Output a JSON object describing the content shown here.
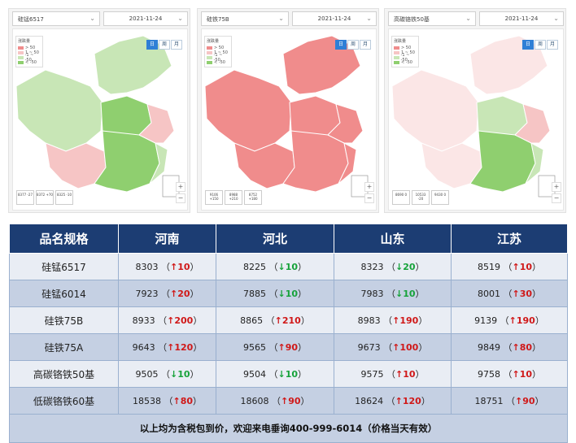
{
  "panels": [
    {
      "name": "硅锰6517",
      "date": "2021-11-24",
      "legend_title": "涨跌量",
      "legend": [
        "> 50",
        "1 ~ 50",
        "-1 ~ -50",
        "< -50"
      ],
      "summary": [
        "8377 -27",
        "8372 +70",
        "8325 -10"
      ]
    },
    {
      "name": "硅铁75B",
      "date": "2021-11-24",
      "legend_title": "涨跌量",
      "legend": [
        "> 50",
        "1 ~ 50",
        "-1 ~ -50",
        "< -50"
      ],
      "summary": [
        "9106 +150",
        "8988 +210",
        "8752 +180"
      ]
    },
    {
      "name": "高碳铬铁50基",
      "date": "2021-11-24",
      "legend_title": "涨跌量",
      "legend": [
        "> 50",
        "1 ~ 50",
        "-1 ~ -50",
        "< -50"
      ],
      "summary": [
        "8690 0",
        "10533 -20",
        "9430 0"
      ]
    }
  ],
  "toggle": [
    "日",
    "周",
    "月"
  ],
  "zoom": [
    "+",
    "−"
  ],
  "colors": {
    "header": "#1c3d73",
    "up": "#d01818",
    "down": "#16a23a",
    "map_up_strong": "#f08c8c",
    "map_up": "#f6c5c5",
    "map_down": "#c8e6b6",
    "map_down_strong": "#8fcf6f"
  },
  "table": {
    "headers": [
      "品名规格",
      "河南",
      "河北",
      "山东",
      "江苏"
    ],
    "rows": [
      {
        "name": "硅锰6517",
        "cells": [
          {
            "price": "8303",
            "dir": "up",
            "chg": "10"
          },
          {
            "price": "8225",
            "dir": "down",
            "chg": "10"
          },
          {
            "price": "8323",
            "dir": "down",
            "chg": "20"
          },
          {
            "price": "8519",
            "dir": "up",
            "chg": "10"
          }
        ]
      },
      {
        "name": "硅锰6014",
        "cells": [
          {
            "price": "7923",
            "dir": "up",
            "chg": "20"
          },
          {
            "price": "7885",
            "dir": "down",
            "chg": "10"
          },
          {
            "price": "7983",
            "dir": "down",
            "chg": "10"
          },
          {
            "price": "8001",
            "dir": "up",
            "chg": "30"
          }
        ]
      },
      {
        "name": "硅铁75B",
        "cells": [
          {
            "price": "8933",
            "dir": "up",
            "chg": "200"
          },
          {
            "price": "8865",
            "dir": "up",
            "chg": "210"
          },
          {
            "price": "8983",
            "dir": "up",
            "chg": "190"
          },
          {
            "price": "9139",
            "dir": "up",
            "chg": "190"
          }
        ]
      },
      {
        "name": "硅铁75A",
        "cells": [
          {
            "price": "9643",
            "dir": "up",
            "chg": "120"
          },
          {
            "price": "9565",
            "dir": "up",
            "chg": "90"
          },
          {
            "price": "9673",
            "dir": "up",
            "chg": "100"
          },
          {
            "price": "9849",
            "dir": "up",
            "chg": "80"
          }
        ]
      },
      {
        "name": "高碳铬铁50基",
        "cells": [
          {
            "price": "9505",
            "dir": "down",
            "chg": "10"
          },
          {
            "price": "9504",
            "dir": "down",
            "chg": "10"
          },
          {
            "price": "9575",
            "dir": "up",
            "chg": "10"
          },
          {
            "price": "9758",
            "dir": "up",
            "chg": "10"
          }
        ]
      },
      {
        "name": "低碳铬铁60基",
        "cells": [
          {
            "price": "18538",
            "dir": "up",
            "chg": "80"
          },
          {
            "price": "18608",
            "dir": "up",
            "chg": "90"
          },
          {
            "price": "18624",
            "dir": "up",
            "chg": "120"
          },
          {
            "price": "18751",
            "dir": "up",
            "chg": "90"
          }
        ]
      }
    ],
    "footer": "以上均为含税包到价，欢迎来电垂询400-999-6014（价格当天有效）"
  }
}
